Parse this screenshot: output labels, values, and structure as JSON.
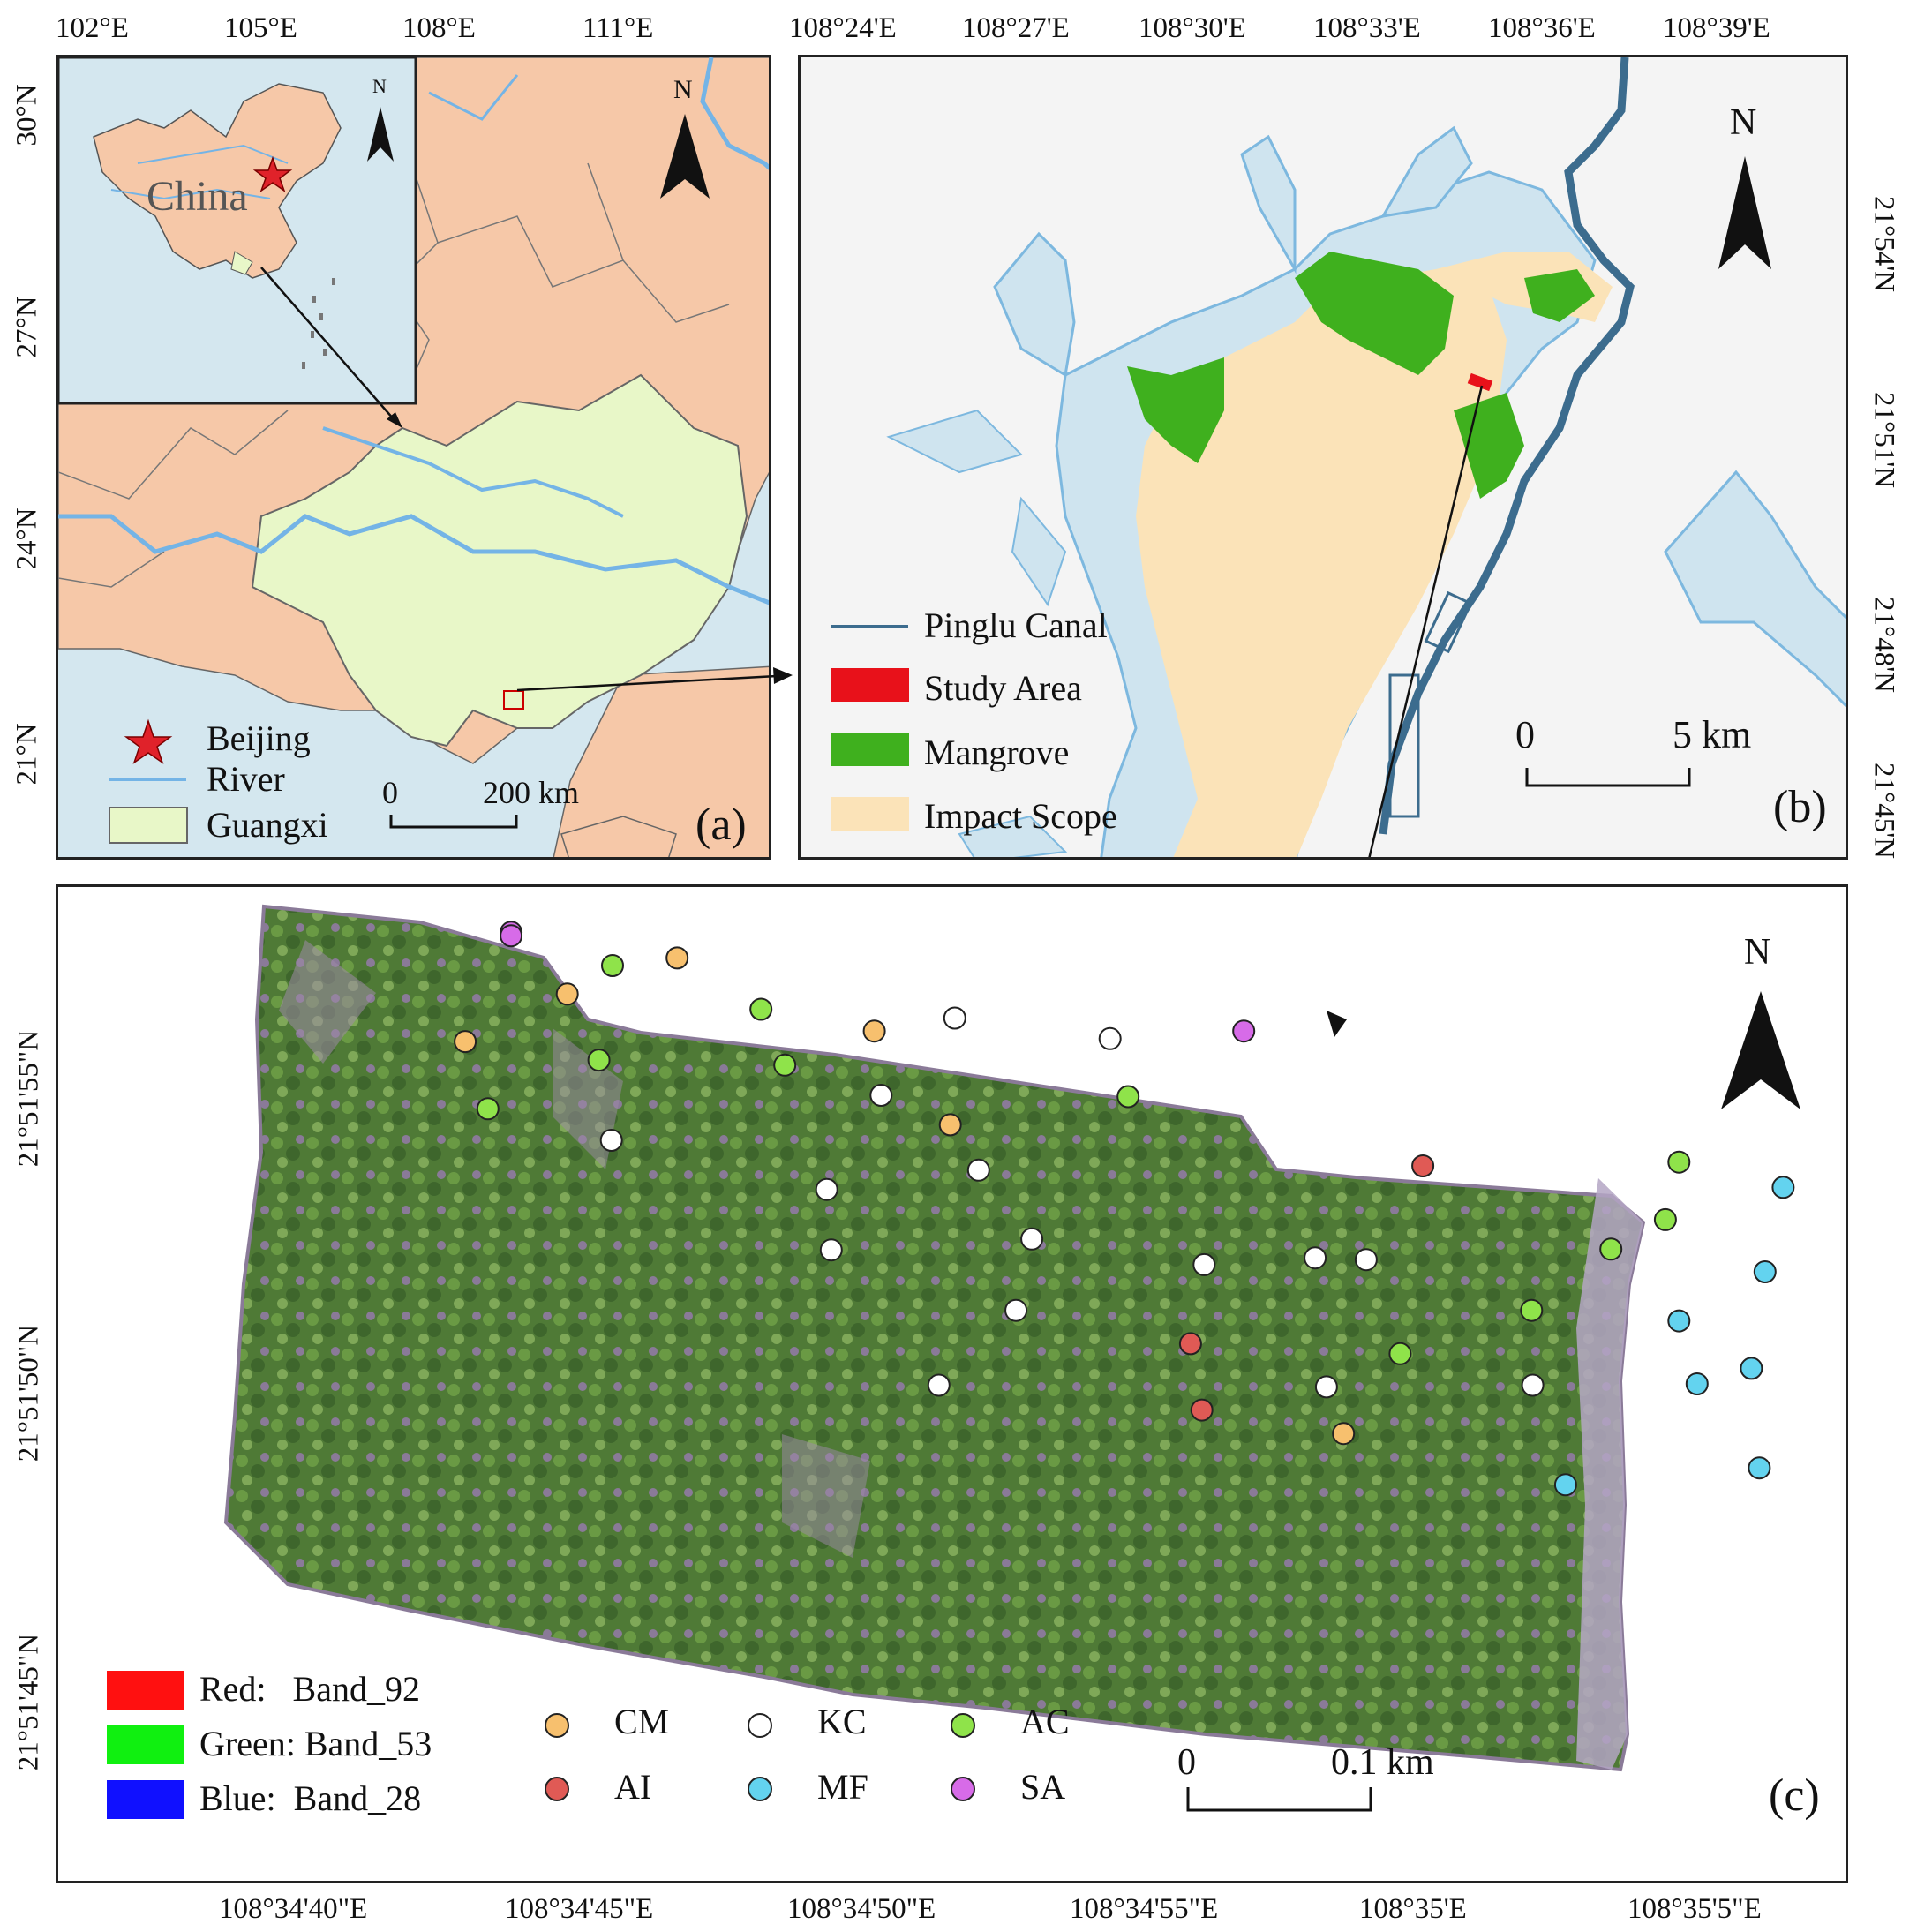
{
  "panel_a": {
    "letter": "(a)",
    "top_ticks": [
      "102°E",
      "105°E",
      "108°E",
      "111°E"
    ],
    "left_ticks": [
      "30°N",
      "27°N",
      "24°N",
      "21°N"
    ],
    "inset_label": "China",
    "north": "N",
    "legend": [
      {
        "label": "Beijing",
        "symbol": "star",
        "color": "#e0222a"
      },
      {
        "label": "River",
        "symbol": "line",
        "color": "#74b4e6"
      },
      {
        "label": "Guangxi",
        "symbol": "box",
        "color": "#e8f7c8"
      }
    ],
    "scale": {
      "start": "0",
      "end": "200 km"
    },
    "colors": {
      "land": "#f6c8a8",
      "guangxi": "#e8f7c8",
      "sea": "#d4e7ef",
      "river": "#74b4e6"
    }
  },
  "panel_b": {
    "letter": "(b)",
    "top_ticks": [
      "108°24'E",
      "108°27'E",
      "108°30'E",
      "108°33'E",
      "108°36'E",
      "108°39'E"
    ],
    "right_ticks": [
      "21°54'N",
      "21°51'N",
      "21°48'N",
      "21°45'N"
    ],
    "north": "N",
    "legend": [
      {
        "label": "Pinglu Canal",
        "symbol": "line",
        "color": "#3c6c8e"
      },
      {
        "label": "Study Area",
        "symbol": "box",
        "color": "#e8111a"
      },
      {
        "label": "Mangrove",
        "symbol": "box",
        "color": "#3fb01e"
      },
      {
        "label": "Impact Scope",
        "symbol": "box",
        "color": "#fbe3b8"
      }
    ],
    "scale": {
      "start": "0",
      "end": "5 km"
    },
    "colors": {
      "background": "#f4f4f4",
      "water": "#cfe4ef",
      "water_edge": "#7db8df"
    }
  },
  "panel_c": {
    "letter": "(c)",
    "bottom_ticks": [
      "108°34'40\"E",
      "108°34'45\"E",
      "108°34'50\"E",
      "108°34'55\"E",
      "108°35'E",
      "108°35'5\"E"
    ],
    "left_ticks": [
      "21°51'55\"N",
      "21°51'50\"N",
      "21°51'45\"N"
    ],
    "north": "N",
    "band_legend": [
      {
        "label": "Red:   Band_92",
        "color": "#ff1010"
      },
      {
        "label": "Green: Band_53",
        "color": "#10f010"
      },
      {
        "label": "Blue:  Band_28",
        "color": "#1010ff"
      }
    ],
    "class_legend": [
      {
        "code": "CM",
        "color": "#f7c06e"
      },
      {
        "code": "KC",
        "color": "#ffffff"
      },
      {
        "code": "AC",
        "color": "#8fe34a"
      },
      {
        "code": "AI",
        "color": "#e05a55"
      },
      {
        "code": "MF",
        "color": "#63d3ef"
      },
      {
        "code": "SA",
        "color": "#d76be8"
      }
    ],
    "scale": {
      "start": "0",
      "end": "0.1 km"
    }
  },
  "samples": [
    {
      "cls": "SA",
      "lon": 6.31,
      "lat": 20.77
    },
    {
      "cls": "SA",
      "lon": 6.31,
      "lat": 20.69
    },
    {
      "cls": "CM",
      "lon": 9.24,
      "lat": 20.16
    },
    {
      "cls": "AC",
      "lon": 8.1,
      "lat": 19.98
    },
    {
      "cls": "CM",
      "lon": 7.3,
      "lat": 19.3
    },
    {
      "cls": "AC",
      "lon": 10.72,
      "lat": 18.94
    },
    {
      "cls": "KC",
      "lon": 14.14,
      "lat": 18.73
    },
    {
      "cls": "CM",
      "lon": 12.72,
      "lat": 18.42
    },
    {
      "cls": "CM",
      "lon": 5.5,
      "lat": 18.17
    },
    {
      "cls": "KC",
      "lon": 16.88,
      "lat": 18.24
    },
    {
      "cls": "SA",
      "lon": 19.24,
      "lat": 18.42
    },
    {
      "cls": "AC",
      "lon": 7.86,
      "lat": 17.73
    },
    {
      "cls": "AC",
      "lon": 11.14,
      "lat": 17.61
    },
    {
      "cls": "AC",
      "lon": 5.9,
      "lat": 16.57
    },
    {
      "cls": "KC",
      "lon": 12.84,
      "lat": 16.89
    },
    {
      "cls": "AC",
      "lon": 17.2,
      "lat": 16.86
    },
    {
      "cls": "CM",
      "lon": 14.06,
      "lat": 16.19
    },
    {
      "cls": "KC",
      "lon": 8.08,
      "lat": 15.82
    },
    {
      "cls": "KC",
      "lon": 14.56,
      "lat": 15.11
    },
    {
      "cls": "AI",
      "lon": 22.4,
      "lat": 15.21
    },
    {
      "cls": "AC",
      "lon": 26.92,
      "lat": 15.3
    },
    {
      "cls": "KC",
      "lon": 11.88,
      "lat": 14.65
    },
    {
      "cls": "MF",
      "lon": 28.76,
      "lat": 14.7
    },
    {
      "cls": "AC",
      "lon": 26.68,
      "lat": 13.93
    },
    {
      "cls": "KC",
      "lon": 15.5,
      "lat": 13.47
    },
    {
      "cls": "AC",
      "lon": 25.72,
      "lat": 13.23
    },
    {
      "cls": "KC",
      "lon": 11.96,
      "lat": 13.21
    },
    {
      "cls": "KC",
      "lon": 18.54,
      "lat": 12.86
    },
    {
      "cls": "KC",
      "lon": 20.5,
      "lat": 13.02
    },
    {
      "cls": "KC",
      "lon": 21.4,
      "lat": 12.98
    },
    {
      "cls": "MF",
      "lon": 28.44,
      "lat": 12.69
    },
    {
      "cls": "KC",
      "lon": 15.22,
      "lat": 11.77
    },
    {
      "cls": "AC",
      "lon": 24.32,
      "lat": 11.77
    },
    {
      "cls": "MF",
      "lon": 26.92,
      "lat": 11.52
    },
    {
      "cls": "AI",
      "lon": 18.3,
      "lat": 10.98
    },
    {
      "cls": "AC",
      "lon": 22.0,
      "lat": 10.74
    },
    {
      "cls": "MF",
      "lon": 28.2,
      "lat": 10.39
    },
    {
      "cls": "KC",
      "lon": 13.86,
      "lat": 9.99
    },
    {
      "cls": "KC",
      "lon": 20.7,
      "lat": 9.95
    },
    {
      "cls": "KC",
      "lon": 24.34,
      "lat": 9.99
    },
    {
      "cls": "MF",
      "lon": 27.24,
      "lat": 10.02
    },
    {
      "cls": "AI",
      "lon": 18.5,
      "lat": 9.4
    },
    {
      "cls": "CM",
      "lon": 21.0,
      "lat": 8.84
    },
    {
      "cls": "MF",
      "lon": 28.34,
      "lat": 8.02
    },
    {
      "cls": "MF",
      "lon": 24.92,
      "lat": 7.62
    }
  ]
}
